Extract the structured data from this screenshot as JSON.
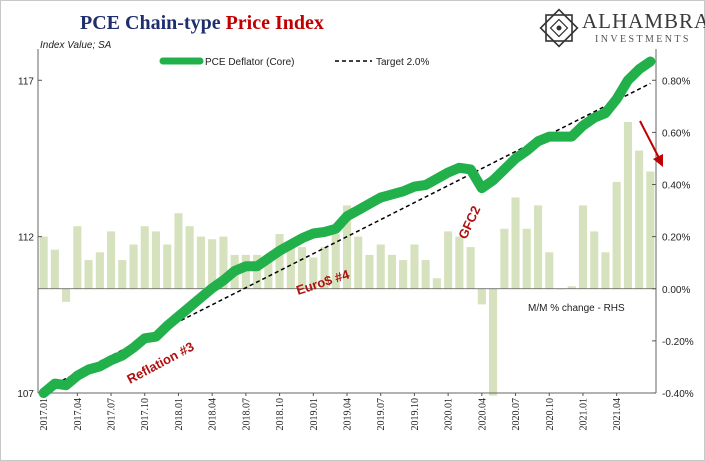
{
  "header": {
    "title_part1": "PCE Chain-type",
    "title_part2": "Price Index",
    "subtitle": "Index Value; SA"
  },
  "brand": {
    "name": "ALHAMBRA",
    "sub": "INVESTMENTS"
  },
  "chart_data": {
    "type": "line",
    "title": "PCE Chain-type Price Index",
    "x": [
      "2017.01",
      "2017.02",
      "2017.03",
      "2017.04",
      "2017.05",
      "2017.06",
      "2017.07",
      "2017.08",
      "2017.09",
      "2017.10",
      "2017.11",
      "2017.12",
      "2018.01",
      "2018.02",
      "2018.03",
      "2018.04",
      "2018.05",
      "2018.06",
      "2018.07",
      "2018.08",
      "2018.09",
      "2018.10",
      "2018.11",
      "2018.12",
      "2019.01",
      "2019.02",
      "2019.03",
      "2019.04",
      "2019.05",
      "2019.06",
      "2019.07",
      "2019.08",
      "2019.09",
      "2019.10",
      "2019.11",
      "2019.12",
      "2020.01",
      "2020.02",
      "2020.03",
      "2020.04",
      "2020.05",
      "2020.06",
      "2020.07",
      "2020.08",
      "2020.09",
      "2020.10",
      "2020.11",
      "2020.12",
      "2021.01",
      "2021.02",
      "2021.03",
      "2021.04",
      "2021.05",
      "2021.06",
      "2021.07"
    ],
    "x_tick_labels": [
      "2017.01",
      "2017.04",
      "2017.07",
      "2017.10",
      "2018.01",
      "2018.04",
      "2018.07",
      "2018.10",
      "2019.01",
      "2019.04",
      "2019.07",
      "2019.10",
      "2020.01",
      "2020.04",
      "2020.07",
      "2020.10",
      "2021.01",
      "2021.04"
    ],
    "left_axis": {
      "min": 107,
      "max": 118,
      "ticks": [
        107,
        112,
        117
      ]
    },
    "right_axis": {
      "min": -0.4,
      "max": 0.92,
      "ticks": [
        "0.80%",
        "0.60%",
        "0.40%",
        "0.20%",
        "0.00%",
        "-0.20%",
        "-0.40%"
      ],
      "tick_values": [
        0.8,
        0.6,
        0.4,
        0.2,
        0.0,
        -0.2,
        -0.4
      ]
    },
    "series": [
      {
        "name": "PCE Deflator (Core)",
        "axis": "left",
        "color": "#22b04a",
        "values": [
          107.0,
          107.3,
          107.25,
          107.55,
          107.75,
          107.85,
          108.05,
          108.2,
          108.45,
          108.75,
          108.8,
          109.15,
          109.45,
          109.75,
          110.05,
          110.35,
          110.6,
          110.9,
          111.05,
          111.05,
          111.3,
          111.55,
          111.75,
          111.95,
          112.1,
          112.15,
          112.25,
          112.65,
          112.85,
          113.05,
          113.25,
          113.35,
          113.45,
          113.6,
          113.65,
          113.85,
          114.05,
          114.2,
          114.15,
          113.55,
          113.8,
          114.15,
          114.5,
          114.75,
          115.05,
          115.2,
          115.2,
          115.2,
          115.55,
          115.8,
          115.95,
          116.4,
          117.0,
          117.35,
          117.6
        ]
      },
      {
        "name": "Target 2.0%",
        "axis": "left",
        "color": "#000000",
        "dashed": true,
        "start": 107.1,
        "end": 116.9
      },
      {
        "name": "M/M % change - RHS",
        "type": "bar",
        "axis": "right",
        "color": "#d6e2bd",
        "values": [
          0.2,
          0.15,
          -0.05,
          0.24,
          0.11,
          0.14,
          0.22,
          0.11,
          0.17,
          0.24,
          0.22,
          0.17,
          0.29,
          0.24,
          0.2,
          0.19,
          0.2,
          0.13,
          0.13,
          0.13,
          0.12,
          0.21,
          0.17,
          0.16,
          0.12,
          0.16,
          0.21,
          0.32,
          0.2,
          0.13,
          0.17,
          0.13,
          0.11,
          0.17,
          0.11,
          0.04,
          0.22,
          0.2,
          0.16,
          -0.06,
          -0.41,
          0.23,
          0.35,
          0.23,
          0.32,
          0.14,
          0.0,
          0.01,
          0.32,
          0.22,
          0.14,
          0.41,
          0.64,
          0.53,
          0.45
        ]
      }
    ],
    "annotations": [
      "Reflation #3",
      "Euro$ #4",
      "GFC2"
    ],
    "rhs_note": "M/M  % change - RHS"
  }
}
